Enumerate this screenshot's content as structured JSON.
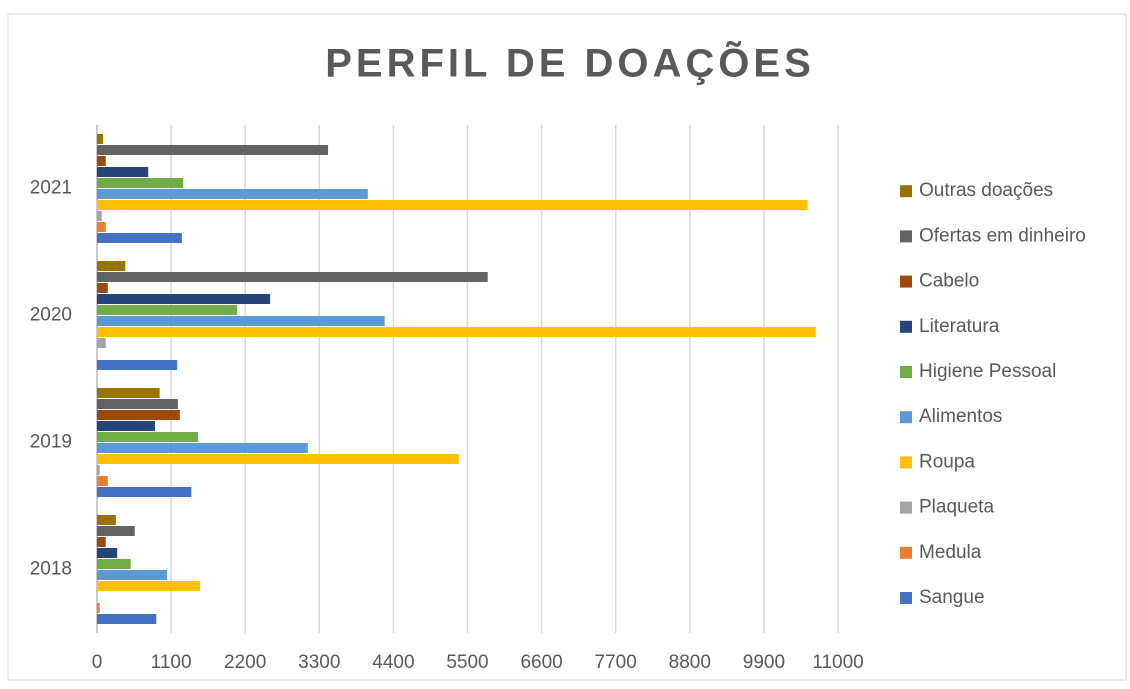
{
  "chart_data": {
    "type": "bar",
    "orientation": "horizontal",
    "title": "PERFIL DE DOAÇÕES",
    "categories": [
      "2018",
      "2019",
      "2020",
      "2021"
    ],
    "series": [
      {
        "name": "Sangue",
        "color": "#4472c4",
        "values": [
          880,
          1400,
          1190,
          1260
        ]
      },
      {
        "name": "Medula",
        "color": "#ed7d31",
        "values": [
          40,
          160,
          0,
          130
        ]
      },
      {
        "name": "Plaqueta",
        "color": "#a5a5a5",
        "values": [
          0,
          40,
          130,
          70
        ]
      },
      {
        "name": "Roupa",
        "color": "#ffc000",
        "values": [
          1530,
          5370,
          10670,
          10550
        ]
      },
      {
        "name": "Alimentos",
        "color": "#5b9bd5",
        "values": [
          1040,
          3130,
          4270,
          4020
        ]
      },
      {
        "name": "Higiene Pessoal",
        "color": "#70ad47",
        "values": [
          500,
          1500,
          2080,
          1280
        ]
      },
      {
        "name": "Literatura",
        "color": "#264478",
        "values": [
          300,
          860,
          2570,
          760
        ]
      },
      {
        "name": "Cabelo",
        "color": "#9e480e",
        "values": [
          130,
          1230,
          160,
          130
        ]
      },
      {
        "name": "Ofertas em dinheiro",
        "color": "#636363",
        "values": [
          560,
          1200,
          5800,
          3430
        ]
      },
      {
        "name": "Outras doações",
        "color": "#997300",
        "values": [
          280,
          930,
          420,
          90
        ]
      }
    ],
    "xlim": [
      0,
      11000
    ],
    "xticks": [
      0,
      1100,
      2200,
      3300,
      4400,
      5500,
      6600,
      7700,
      8800,
      9900,
      11000
    ],
    "grid": true,
    "legend": "right"
  }
}
